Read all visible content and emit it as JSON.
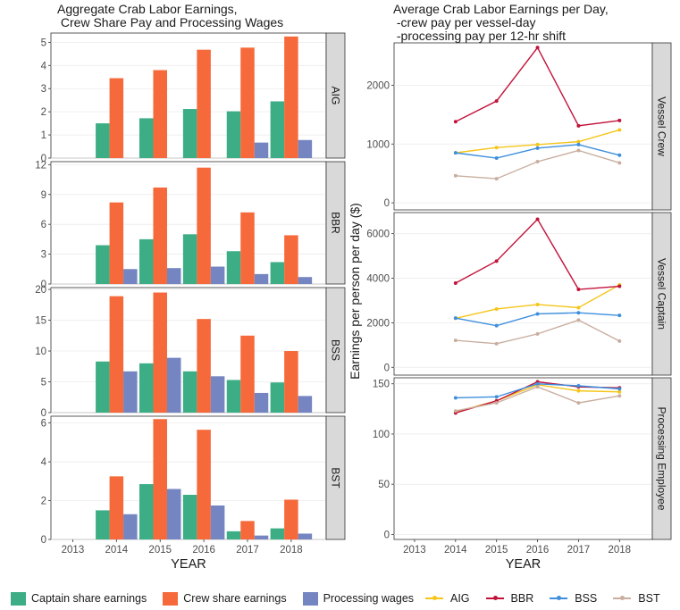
{
  "titles": {
    "left": "Aggregate Crab Labor Earnings,\n Crew Share Pay and Processing Wages",
    "right": "Average Crab Labor Earnings per Day,\n -crew pay per vessel-day\n -processing pay per 12-hr shift"
  },
  "colors": {
    "captain": "#3cad84",
    "crew": "#f5693b",
    "processing": "#7485c1",
    "AIG": "#f5c518",
    "BBR": "#c2123a",
    "BSS": "#3e8fdc",
    "BST": "#c9aea0",
    "strip": "#d9d9d9",
    "grid": "#ebebeb"
  },
  "legend": {
    "bars": [
      {
        "key": "captain",
        "label": "Captain share earnings"
      },
      {
        "key": "crew",
        "label": "Crew share earnings"
      },
      {
        "key": "processing",
        "label": "Processing wages"
      }
    ],
    "lines": [
      {
        "key": "AIG",
        "label": "AIG"
      },
      {
        "key": "BBR",
        "label": "BBR"
      },
      {
        "key": "BSS",
        "label": "BSS"
      },
      {
        "key": "BST",
        "label": "BST"
      }
    ]
  },
  "chart_data": [
    {
      "type": "bar",
      "title": "Aggregate Crab Labor Earnings,\n Crew Share Pay and Processing Wages",
      "xlabel": "YEAR",
      "ylabel": "",
      "categories": [
        "2013",
        "2014",
        "2015",
        "2016",
        "2017",
        "2018"
      ],
      "series_names": [
        "Captain share earnings",
        "Crew share earnings",
        "Processing wages"
      ],
      "facets": [
        {
          "name": "AIG",
          "ylim": [
            0,
            5.4
          ],
          "yticks": [
            0,
            1,
            2,
            3,
            4,
            5
          ],
          "series": [
            {
              "name": "Captain share earnings",
              "values": [
                null,
                1.5,
                1.72,
                2.12,
                2.02,
                2.45
              ]
            },
            {
              "name": "Crew share earnings",
              "values": [
                null,
                3.45,
                3.8,
                4.68,
                4.77,
                5.25
              ]
            },
            {
              "name": "Processing wages",
              "values": [
                null,
                null,
                null,
                null,
                0.67,
                0.78
              ]
            }
          ]
        },
        {
          "name": "BBR",
          "ylim": [
            0,
            12.3
          ],
          "yticks": [
            0,
            3,
            6,
            9,
            12
          ],
          "series": [
            {
              "name": "Captain share earnings",
              "values": [
                null,
                3.9,
                4.5,
                5.0,
                3.3,
                2.2
              ]
            },
            {
              "name": "Crew share earnings",
              "values": [
                null,
                8.2,
                9.7,
                11.7,
                7.2,
                4.9
              ]
            },
            {
              "name": "Processing wages",
              "values": [
                null,
                1.5,
                1.6,
                1.75,
                1.0,
                0.7
              ]
            }
          ]
        },
        {
          "name": "BSS",
          "ylim": [
            0,
            20.3
          ],
          "yticks": [
            0,
            5,
            10,
            15,
            20
          ],
          "series": [
            {
              "name": "Captain share earnings",
              "values": [
                null,
                8.3,
                8.0,
                6.7,
                5.3,
                4.9
              ]
            },
            {
              "name": "Crew share earnings",
              "values": [
                null,
                18.9,
                19.5,
                15.2,
                12.5,
                10.0
              ]
            },
            {
              "name": "Processing wages",
              "values": [
                null,
                6.7,
                8.9,
                5.9,
                3.2,
                2.7
              ]
            }
          ]
        },
        {
          "name": "BST",
          "ylim": [
            0,
            6.35
          ],
          "yticks": [
            0,
            2,
            4,
            6
          ],
          "series": [
            {
              "name": "Captain share earnings",
              "values": [
                null,
                1.5,
                2.85,
                2.3,
                0.42,
                0.57
              ]
            },
            {
              "name": "Crew share earnings",
              "values": [
                null,
                3.25,
                6.2,
                5.65,
                0.95,
                2.05
              ]
            },
            {
              "name": "Processing wages",
              "values": [
                null,
                1.3,
                2.6,
                1.75,
                0.2,
                0.3
              ]
            }
          ]
        }
      ]
    },
    {
      "type": "line",
      "title": "Average Crab Labor Earnings per Day,\n -crew pay per vessel-day\n -processing pay per 12-hr shift",
      "xlabel": "YEAR",
      "ylabel": "Earnings per person per day ($)",
      "x": [
        2013,
        2014,
        2015,
        2016,
        2017,
        2018
      ],
      "facets": [
        {
          "name": "Vessel Crew",
          "ylim": [
            -120,
            2720
          ],
          "yticks": [
            0,
            1000,
            2000
          ],
          "series": [
            {
              "name": "AIG",
              "values": [
                null,
                850,
                940,
                990,
                1040,
                1240
              ]
            },
            {
              "name": "BBR",
              "values": [
                null,
                1380,
                1730,
                2640,
                1310,
                1400
              ]
            },
            {
              "name": "BSS",
              "values": [
                null,
                850,
                760,
                930,
                990,
                810
              ]
            },
            {
              "name": "BST",
              "values": [
                null,
                460,
                410,
                700,
                890,
                680
              ]
            }
          ]
        },
        {
          "name": "Vessel Captain",
          "ylim": [
            -350,
            6950
          ],
          "yticks": [
            0,
            2000,
            4000,
            6000
          ],
          "series": [
            {
              "name": "AIG",
              "values": [
                null,
                2200,
                2620,
                2820,
                2680,
                3700
              ]
            },
            {
              "name": "BBR",
              "values": [
                null,
                3780,
                4770,
                6650,
                3500,
                3640
              ]
            },
            {
              "name": "BSS",
              "values": [
                null,
                2210,
                1870,
                2400,
                2450,
                2330
              ]
            },
            {
              "name": "BST",
              "values": [
                null,
                1210,
                1060,
                1500,
                2120,
                1180
              ]
            }
          ]
        },
        {
          "name": "Processing Employee",
          "ylim": [
            -5,
            156
          ],
          "yticks": [
            0,
            50,
            100,
            150
          ],
          "series": [
            {
              "name": "AIG",
              "values": [
                null,
                122,
                133,
                149,
                143,
                142
              ]
            },
            {
              "name": "BBR",
              "values": [
                null,
                121,
                133,
                152,
                147,
                146
              ]
            },
            {
              "name": "BSS",
              "values": [
                null,
                136,
                137,
                150,
                148,
                145
              ]
            },
            {
              "name": "BST",
              "values": [
                null,
                123,
                131,
                147,
                131,
                138
              ]
            }
          ]
        }
      ]
    }
  ]
}
